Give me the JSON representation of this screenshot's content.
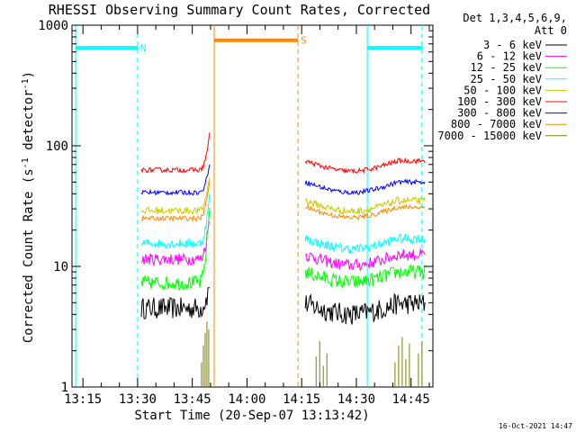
{
  "chart_data": {
    "type": "line",
    "title": "RHESSI Observing Summary Count Rates, Corrected",
    "xlabel": "Start Time (20-Sep-07 13:13:42)",
    "ylabel_main": "Corrected Count Rate (s",
    "ylabel_sup1": "-1",
    "ylabel_mid": " detector",
    "ylabel_sup2": "-1",
    "ylabel_end": ")",
    "yscale": "log",
    "ylim": [
      1,
      1000
    ],
    "xlim": [
      "13:12",
      "14:51"
    ],
    "x_ticks": [
      "13:15",
      "13:30",
      "13:45",
      "14:00",
      "14:15",
      "14:30",
      "14:45"
    ],
    "y_ticks": [
      "1",
      "10",
      "100",
      "1000"
    ],
    "legend_header": [
      "Det 1,3,4,5,6,9,",
      "Att 0"
    ],
    "legend_position": "right",
    "series": [
      {
        "name": "3 - 6 keV",
        "color": "#000000",
        "seg1": {
          "level": 4.5,
          "noise": 0.09,
          "end": 7.5
        },
        "seg2": {
          "level": 4.9,
          "noise": 0.09
        }
      },
      {
        "name": "6 - 12 keV",
        "color": "#ff00ff",
        "seg1": {
          "level": 11.5,
          "noise": 0.05,
          "end": 30
        },
        "seg2": {
          "level": 12.5,
          "noise": 0.05
        }
      },
      {
        "name": "12 - 25 keV",
        "color": "#00ff00",
        "seg1": {
          "level": 7.3,
          "noise": 0.06,
          "end": 42
        },
        "seg2": {
          "level": 9.0,
          "noise": 0.06
        }
      },
      {
        "name": "25 - 50 keV",
        "color": "#00ffff",
        "seg1": {
          "level": 15.5,
          "noise": 0.04,
          "end": 45
        },
        "seg2": {
          "level": 17.0,
          "noise": 0.04
        }
      },
      {
        "name": "50 - 100 keV",
        "color": "#cccc00",
        "seg1": {
          "level": 29,
          "noise": 0.03,
          "end": 65
        },
        "seg2": {
          "level": 35,
          "noise": 0.03
        }
      },
      {
        "name": "100 - 300 keV",
        "color": "#ff0000",
        "seg1": {
          "level": 63,
          "noise": 0.02,
          "end": 140
        },
        "seg2": {
          "level": 75,
          "noise": 0.02
        }
      },
      {
        "name": "300 - 800 keV",
        "color": "#0000ff",
        "seg1": {
          "level": 41,
          "noise": 0.02,
          "end": 80
        },
        "seg2": {
          "level": 50,
          "noise": 0.02
        }
      },
      {
        "name": "800 - 7000 keV",
        "color": "#ff8800",
        "seg1": {
          "level": 25,
          "noise": 0.02,
          "end": 60
        },
        "seg2": {
          "level": 31,
          "noise": 0.02
        }
      },
      {
        "name": "7000 - 15000 keV",
        "color": "#808000",
        "seg1": {
          "level": 0,
          "noise": 0,
          "end": 3.5
        },
        "seg2": {
          "level": 0,
          "noise": 0
        }
      }
    ],
    "segments": {
      "seg1": [
        "13:31",
        "13:50"
      ],
      "seg2": [
        "14:16",
        "14:49"
      ]
    },
    "flags": [
      {
        "label": "N",
        "color": "#00ffff",
        "level": 650,
        "start": "13:13",
        "end": "13:30"
      },
      {
        "label": "",
        "color": "#00ffff",
        "level": 650,
        "start": "14:33",
        "end": "14:48"
      },
      {
        "label": "S",
        "color": "#ff8800",
        "level": 750,
        "start": "13:51",
        "end": "14:14"
      }
    ],
    "markers": [
      {
        "time": "13:13",
        "color": "#00ffff",
        "style": "solid"
      },
      {
        "time": "13:30",
        "color": "#00ffff",
        "style": "dashed"
      },
      {
        "time": "13:51",
        "color": "#ff8800",
        "style": "solid"
      },
      {
        "time": "14:14",
        "color": "#ff8800",
        "style": "dashed"
      },
      {
        "time": "14:33",
        "color": "#00ffff",
        "style": "solid"
      },
      {
        "time": "14:48",
        "color": "#00ffff",
        "style": "dashed"
      }
    ]
  },
  "footer_timestamp": "16-Oct-2021 14:47"
}
